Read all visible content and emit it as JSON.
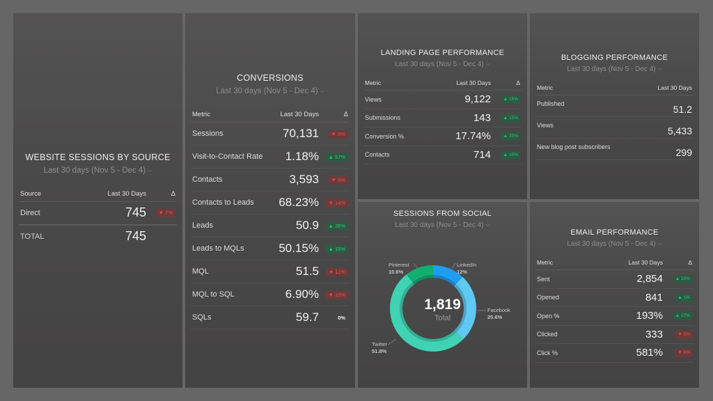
{
  "sessions_by_source": {
    "title": "WEBSITE SESSIONS BY SOURCE",
    "date_range": "Last 30 days (Nov 5 - Dec 4)",
    "columns": [
      "Source",
      "Last 30 Days",
      "Δ"
    ],
    "rows": [
      {
        "label": "Direct",
        "value": "745",
        "delta": "7%",
        "dir": "down"
      }
    ],
    "total": {
      "label": "TOTAL",
      "value": "745"
    }
  },
  "conversions": {
    "title": "CONVERSIONS",
    "date_range": "Last 30 days (Nov 5 - Dec 4)",
    "columns": [
      "Metric",
      "Last 30 Days",
      "Δ"
    ],
    "rows": [
      {
        "label": "Sessions",
        "value": "70,131",
        "delta": "6%",
        "dir": "down"
      },
      {
        "label": "Visit-to-Contact Rate",
        "value": "1.18%",
        "delta": "57%",
        "dir": "up"
      },
      {
        "label": "Contacts",
        "value": "3,593",
        "delta": "6%",
        "dir": "down"
      },
      {
        "label": "Contacts to Leads",
        "value": "68.23%",
        "delta": "14%",
        "dir": "down"
      },
      {
        "label": "Leads",
        "value": "50.9",
        "delta": "26%",
        "dir": "up"
      },
      {
        "label": "Leads to MQLs",
        "value": "50.15%",
        "delta": "15%",
        "dir": "up"
      },
      {
        "label": "MQL",
        "value": "51.5",
        "delta": "11%",
        "dir": "down"
      },
      {
        "label": "MQL to SQL",
        "value": "6.90%",
        "delta": "10%",
        "dir": "down"
      },
      {
        "label": "SQLs",
        "value": "59.7",
        "delta": "0%",
        "dir": "flat"
      }
    ]
  },
  "landing_page": {
    "title": "LANDING PAGE PERFORMANCE",
    "date_range": "Last 30 days (Nov 5 - Dec 4)",
    "columns": [
      "Metric",
      "Last 30 Days",
      "Δ"
    ],
    "rows": [
      {
        "label": "Views",
        "value": "9,122",
        "delta": "15%",
        "dir": "up"
      },
      {
        "label": "Submissions",
        "value": "143",
        "delta": "15%",
        "dir": "up"
      },
      {
        "label": "Conversion %",
        "value": "17.74%",
        "delta": "20%",
        "dir": "up"
      },
      {
        "label": "Contacts",
        "value": "714",
        "delta": "19%",
        "dir": "up"
      }
    ]
  },
  "blogging": {
    "title": "BLOGGING PERFORMANCE",
    "date_range": "Last 30 days (Nov 5 - Dec 4)",
    "columns": [
      "Metric",
      "Last 30 Days"
    ],
    "rows": [
      {
        "label": "Published",
        "value": "51.2"
      },
      {
        "label": "Views",
        "value": "5,433"
      },
      {
        "label": "New blog post subscribers",
        "value": "299"
      }
    ]
  },
  "social": {
    "title": "SESSIONS FROM SOCIAL",
    "date_range": "Last 30 days (Nov 5 - Dec 4)",
    "total_value": "1,819",
    "total_label": "Total",
    "colors": {
      "LinkedIn": "#1e9df2",
      "Facebook": "#5ec9f2",
      "Twitter": "#3fd3b3",
      "Pinterest": "#12b06f"
    }
  },
  "email": {
    "title": "EMAIL PERFORMANCE",
    "date_range": "Last 30 days (Nov 5 - Dec 4)",
    "columns": [
      "Metric",
      "Last 30 Days",
      "Δ"
    ],
    "rows": [
      {
        "label": "Sent",
        "value": "2,854",
        "delta": "15%",
        "dir": "up"
      },
      {
        "label": "Opened",
        "value": "841",
        "delta": "1%",
        "dir": "up"
      },
      {
        "label": "Open %",
        "value": "193%",
        "delta": "17%",
        "dir": "up"
      },
      {
        "label": "Clicked",
        "value": "333",
        "delta": "5%",
        "dir": "down"
      },
      {
        "label": "Click %",
        "value": "581%",
        "delta": "8%",
        "dir": "down"
      }
    ]
  },
  "chart_data": {
    "type": "pie",
    "title": "SESSIONS FROM SOCIAL",
    "categories": [
      "LinkedIn",
      "Facebook",
      "Twitter",
      "Pinterest"
    ],
    "values": [
      12,
      25.6,
      51.8,
      10.6
    ],
    "value_labels": [
      "12%",
      "25.6%",
      "51.8%",
      "10.6%"
    ],
    "total": 1819,
    "donut": true
  },
  "icons": {
    "chevron": "⌄",
    "up": "▲",
    "down": "▼"
  }
}
